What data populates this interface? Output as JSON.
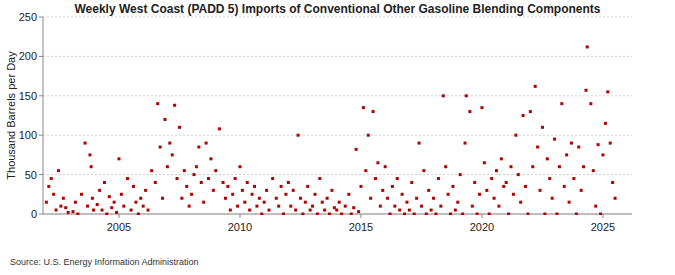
{
  "chart_data": {
    "type": "scatter",
    "title": "Weekly West Coast (PADD 5) Imports of Conventional Other Gasoline Blending Components",
    "y_label": "Thousand Barrels per Day",
    "source": "Source: U.S. Energy Information Administration",
    "color": "#b00000",
    "marker": "square",
    "grid": true,
    "xlim": [
      2001.86,
      2026.2
    ],
    "xticks": [
      2005,
      2010,
      2015,
      2020,
      2025
    ],
    "ylim": [
      0,
      250
    ],
    "yticks": [
      0,
      50,
      100,
      150,
      200,
      250
    ],
    "x": [
      2002.0,
      2002.1,
      2002.2,
      2002.3,
      2002.4,
      2002.5,
      2002.6,
      2002.7,
      2002.8,
      2002.9,
      2003.1,
      2003.2,
      2003.3,
      2003.45,
      2003.6,
      2003.7,
      2003.8,
      2003.85,
      2003.9,
      2003.95,
      2004.1,
      2004.2,
      2004.3,
      2004.4,
      2004.5,
      2004.6,
      2004.7,
      2004.8,
      2004.9,
      2005.0,
      2005.1,
      2005.2,
      2005.35,
      2005.5,
      2005.6,
      2005.7,
      2005.8,
      2005.9,
      2006.0,
      2006.1,
      2006.2,
      2006.35,
      2006.5,
      2006.6,
      2006.7,
      2006.8,
      2006.9,
      2007.0,
      2007.1,
      2007.2,
      2007.3,
      2007.4,
      2007.5,
      2007.6,
      2007.7,
      2007.8,
      2007.9,
      2008.0,
      2008.1,
      2008.2,
      2008.3,
      2008.4,
      2008.5,
      2008.6,
      2008.7,
      2008.8,
      2008.9,
      2009.0,
      2009.15,
      2009.3,
      2009.4,
      2009.5,
      2009.6,
      2009.7,
      2009.8,
      2009.9,
      2010.0,
      2010.1,
      2010.2,
      2010.3,
      2010.4,
      2010.5,
      2010.6,
      2010.7,
      2010.8,
      2010.9,
      2011.0,
      2011.1,
      2011.2,
      2011.35,
      2011.5,
      2011.6,
      2011.7,
      2011.8,
      2011.9,
      2012.0,
      2012.1,
      2012.2,
      2012.3,
      2012.4,
      2012.5,
      2012.6,
      2012.7,
      2012.8,
      2012.9,
      2013.0,
      2013.1,
      2013.2,
      2013.3,
      2013.4,
      2013.5,
      2013.6,
      2013.7,
      2013.8,
      2013.9,
      2014.0,
      2014.1,
      2014.2,
      2014.35,
      2014.5,
      2014.6,
      2014.7,
      2014.8,
      2014.9,
      2015.0,
      2015.1,
      2015.2,
      2015.3,
      2015.4,
      2015.5,
      2015.6,
      2015.7,
      2015.8,
      2015.9,
      2016.0,
      2016.1,
      2016.2,
      2016.3,
      2016.4,
      2016.5,
      2016.6,
      2016.7,
      2016.8,
      2016.9,
      2017.0,
      2017.1,
      2017.2,
      2017.3,
      2017.4,
      2017.5,
      2017.6,
      2017.7,
      2017.8,
      2017.9,
      2018.0,
      2018.1,
      2018.2,
      2018.3,
      2018.4,
      2018.5,
      2018.6,
      2018.7,
      2018.8,
      2018.9,
      2019.0,
      2019.1,
      2019.2,
      2019.3,
      2019.35,
      2019.5,
      2019.6,
      2019.7,
      2019.8,
      2019.9,
      2020.0,
      2020.1,
      2020.2,
      2020.3,
      2020.4,
      2020.5,
      2020.6,
      2020.7,
      2020.8,
      2020.9,
      2021.0,
      2021.1,
      2021.2,
      2021.3,
      2021.4,
      2021.5,
      2021.6,
      2021.7,
      2021.8,
      2021.9,
      2022.0,
      2022.1,
      2022.2,
      2022.3,
      2022.4,
      2022.5,
      2022.6,
      2022.7,
      2022.8,
      2022.9,
      2023.0,
      2023.1,
      2023.2,
      2023.3,
      2023.4,
      2023.5,
      2023.6,
      2023.7,
      2023.8,
      2023.9,
      2024.0,
      2024.1,
      2024.2,
      2024.3,
      2024.35,
      2024.5,
      2024.6,
      2024.7,
      2024.8,
      2024.9,
      2025.0,
      2025.1,
      2025.2,
      2025.3,
      2025.4,
      2025.5
    ],
    "values": [
      15,
      35,
      45,
      25,
      5,
      55,
      10,
      20,
      8,
      2,
      3,
      15,
      0,
      25,
      90,
      10,
      75,
      60,
      20,
      5,
      12,
      30,
      5,
      40,
      0,
      22,
      8,
      15,
      2,
      70,
      25,
      10,
      45,
      5,
      35,
      15,
      0,
      20,
      10,
      30,
      5,
      55,
      40,
      140,
      85,
      20,
      120,
      60,
      90,
      75,
      138,
      45,
      110,
      20,
      55,
      35,
      10,
      25,
      50,
      60,
      85,
      40,
      15,
      90,
      45,
      70,
      30,
      55,
      108,
      40,
      20,
      35,
      5,
      25,
      45,
      10,
      60,
      30,
      15,
      40,
      5,
      25,
      35,
      10,
      20,
      0,
      15,
      30,
      5,
      45,
      20,
      10,
      35,
      0,
      25,
      40,
      10,
      30,
      5,
      100,
      20,
      0,
      15,
      35,
      5,
      10,
      25,
      0,
      45,
      15,
      5,
      20,
      0,
      30,
      8,
      5,
      15,
      0,
      10,
      25,
      0,
      8,
      82,
      3,
      35,
      135,
      55,
      100,
      20,
      130,
      45,
      65,
      10,
      30,
      60,
      20,
      0,
      35,
      10,
      45,
      5,
      25,
      0,
      15,
      5,
      40,
      0,
      20,
      90,
      10,
      55,
      0,
      30,
      5,
      20,
      0,
      45,
      10,
      150,
      60,
      25,
      0,
      35,
      5,
      15,
      50,
      0,
      90,
      150,
      130,
      10,
      40,
      0,
      25,
      135,
      65,
      30,
      0,
      45,
      20,
      55,
      10,
      70,
      35,
      40,
      0,
      60,
      25,
      100,
      50,
      15,
      125,
      35,
      0,
      130,
      60,
      162,
      85,
      30,
      110,
      0,
      70,
      45,
      20,
      95,
      0,
      60,
      140,
      35,
      75,
      15,
      90,
      45,
      0,
      85,
      30,
      60,
      157,
      212,
      140,
      55,
      10,
      88,
      0,
      75,
      115,
      155,
      90,
      40,
      20
    ]
  }
}
